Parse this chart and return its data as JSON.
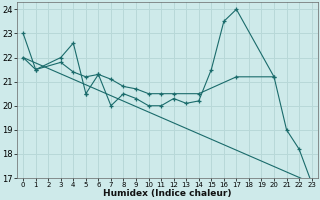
{
  "xlabel": "Humidex (Indice chaleur)",
  "background_color": "#ceeaea",
  "grid_color": "#b8d8d8",
  "line_color": "#1a6b6b",
  "xlim": [
    -0.5,
    23.5
  ],
  "ylim": [
    17,
    24.3
  ],
  "yticks": [
    17,
    18,
    19,
    20,
    21,
    22,
    23,
    24
  ],
  "xticks": [
    0,
    1,
    2,
    3,
    4,
    5,
    6,
    7,
    8,
    9,
    10,
    11,
    12,
    13,
    14,
    15,
    16,
    17,
    18,
    19,
    20,
    21,
    22,
    23
  ],
  "line1": {
    "x": [
      0,
      1,
      3,
      4,
      5,
      5,
      6,
      7,
      8,
      9,
      10,
      11,
      12,
      13,
      14,
      15,
      16,
      17,
      20,
      21,
      22,
      23
    ],
    "y": [
      23,
      21.5,
      22,
      22.6,
      20.5,
      20.5,
      21.3,
      20.0,
      20.5,
      20.3,
      20.0,
      20.0,
      20.3,
      20.1,
      20.2,
      21.5,
      23.5,
      24.0,
      21.2,
      19.0,
      18.2,
      16.8
    ]
  },
  "line2": {
    "x": [
      0,
      1,
      3,
      4,
      5,
      6,
      7,
      8,
      9,
      10,
      11,
      12,
      14,
      17,
      20
    ],
    "y": [
      22.0,
      21.5,
      21.8,
      21.4,
      21.2,
      21.3,
      21.1,
      20.8,
      20.7,
      20.5,
      20.5,
      20.5,
      20.5,
      21.2,
      21.2
    ]
  },
  "line3": {
    "x": [
      0,
      23
    ],
    "y": [
      22.0,
      16.8
    ]
  }
}
